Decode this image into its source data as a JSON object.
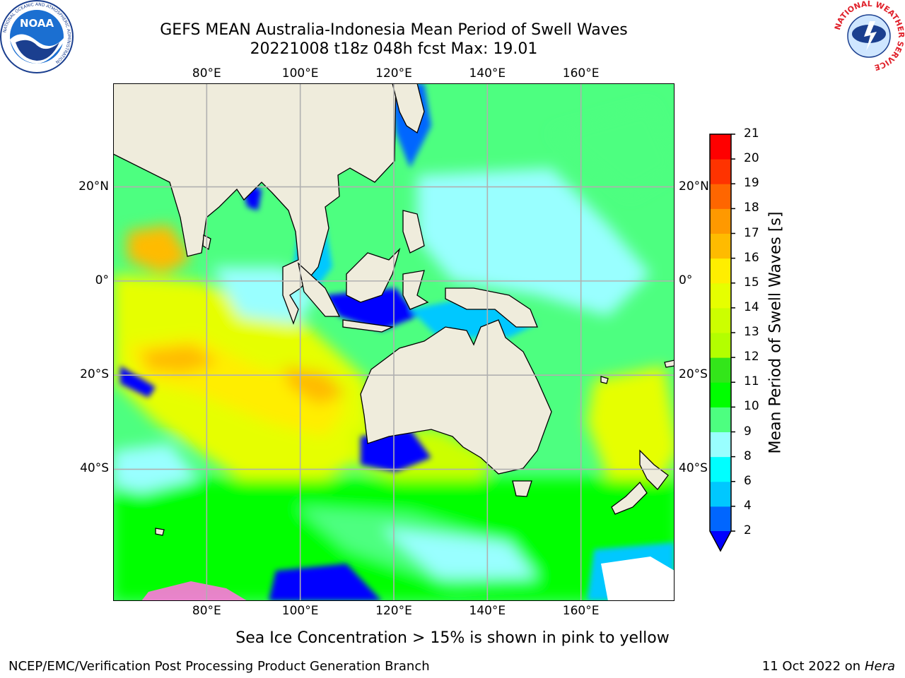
{
  "header": {
    "title_line1": "GEFS MEAN Australia-Indonesia Mean Period of Swell Waves",
    "title_line2": "20221008 t18z 048h fcst   Max: 19.01"
  },
  "logos": {
    "noaa": {
      "text": "NOAA",
      "ring_text": "NATIONAL OCEANIC AND ATMOSPHERIC ADMINISTRATION",
      "bottom_text": "U.S. DEPARTMENT OF COMMERCE"
    },
    "nws": {
      "ring_text": "NATIONAL WEATHER SERVICE"
    }
  },
  "map": {
    "lon_ticks": [
      "80°E",
      "100°E",
      "120°E",
      "140°E",
      "160°E"
    ],
    "lat_ticks": [
      "20°N",
      "0°",
      "20°S",
      "40°S"
    ],
    "lon_values": [
      80,
      100,
      120,
      140,
      160
    ],
    "lat_values": [
      20,
      0,
      -20,
      -40
    ],
    "extent": {
      "lon_min": 60,
      "lon_max": 180,
      "lat_min": -68,
      "lat_max": 42
    },
    "land_color": "#efecdc",
    "grid_color": "#b0b0b0"
  },
  "colorbar": {
    "title": "Mean Period of Swell Waves [s]",
    "tick_labels": [
      "21",
      "20",
      "19",
      "18",
      "17",
      "16",
      "15",
      "14",
      "13",
      "12",
      "11",
      "10",
      "9",
      "8",
      "6",
      "4",
      "2"
    ],
    "bands": [
      {
        "from": 2,
        "to": 4,
        "color": "#0066ff"
      },
      {
        "from": 4,
        "to": 6,
        "color": "#00c8ff"
      },
      {
        "from": 6,
        "to": 8,
        "color": "#00ffff"
      },
      {
        "from": 8,
        "to": 9,
        "color": "#99ffff"
      },
      {
        "from": 9,
        "to": 10,
        "color": "#4dff80"
      },
      {
        "from": 10,
        "to": 11,
        "color": "#00ff00"
      },
      {
        "from": 11,
        "to": 12,
        "color": "#33e61a"
      },
      {
        "from": 12,
        "to": 13,
        "color": "#b3ff00"
      },
      {
        "from": 13,
        "to": 14,
        "color": "#ccff00"
      },
      {
        "from": 14,
        "to": 15,
        "color": "#e6ff00"
      },
      {
        "from": 15,
        "to": 16,
        "color": "#ffee00"
      },
      {
        "from": 16,
        "to": 17,
        "color": "#ffbb00"
      },
      {
        "from": 17,
        "to": 18,
        "color": "#ff9900"
      },
      {
        "from": 18,
        "to": 19,
        "color": "#ff6600"
      },
      {
        "from": 19,
        "to": 20,
        "color": "#ff3300"
      },
      {
        "from": 20,
        "to": 21,
        "color": "#ff0000"
      }
    ],
    "under_color": "#0000ff"
  },
  "footer": {
    "note": "Sea Ice Concentration > 15% is shown in pink to yellow",
    "credit": "NCEP/EMC/Verification Post Processing Product Generation Branch",
    "date_text": "11 Oct 2022 on ",
    "host": "Hera"
  }
}
